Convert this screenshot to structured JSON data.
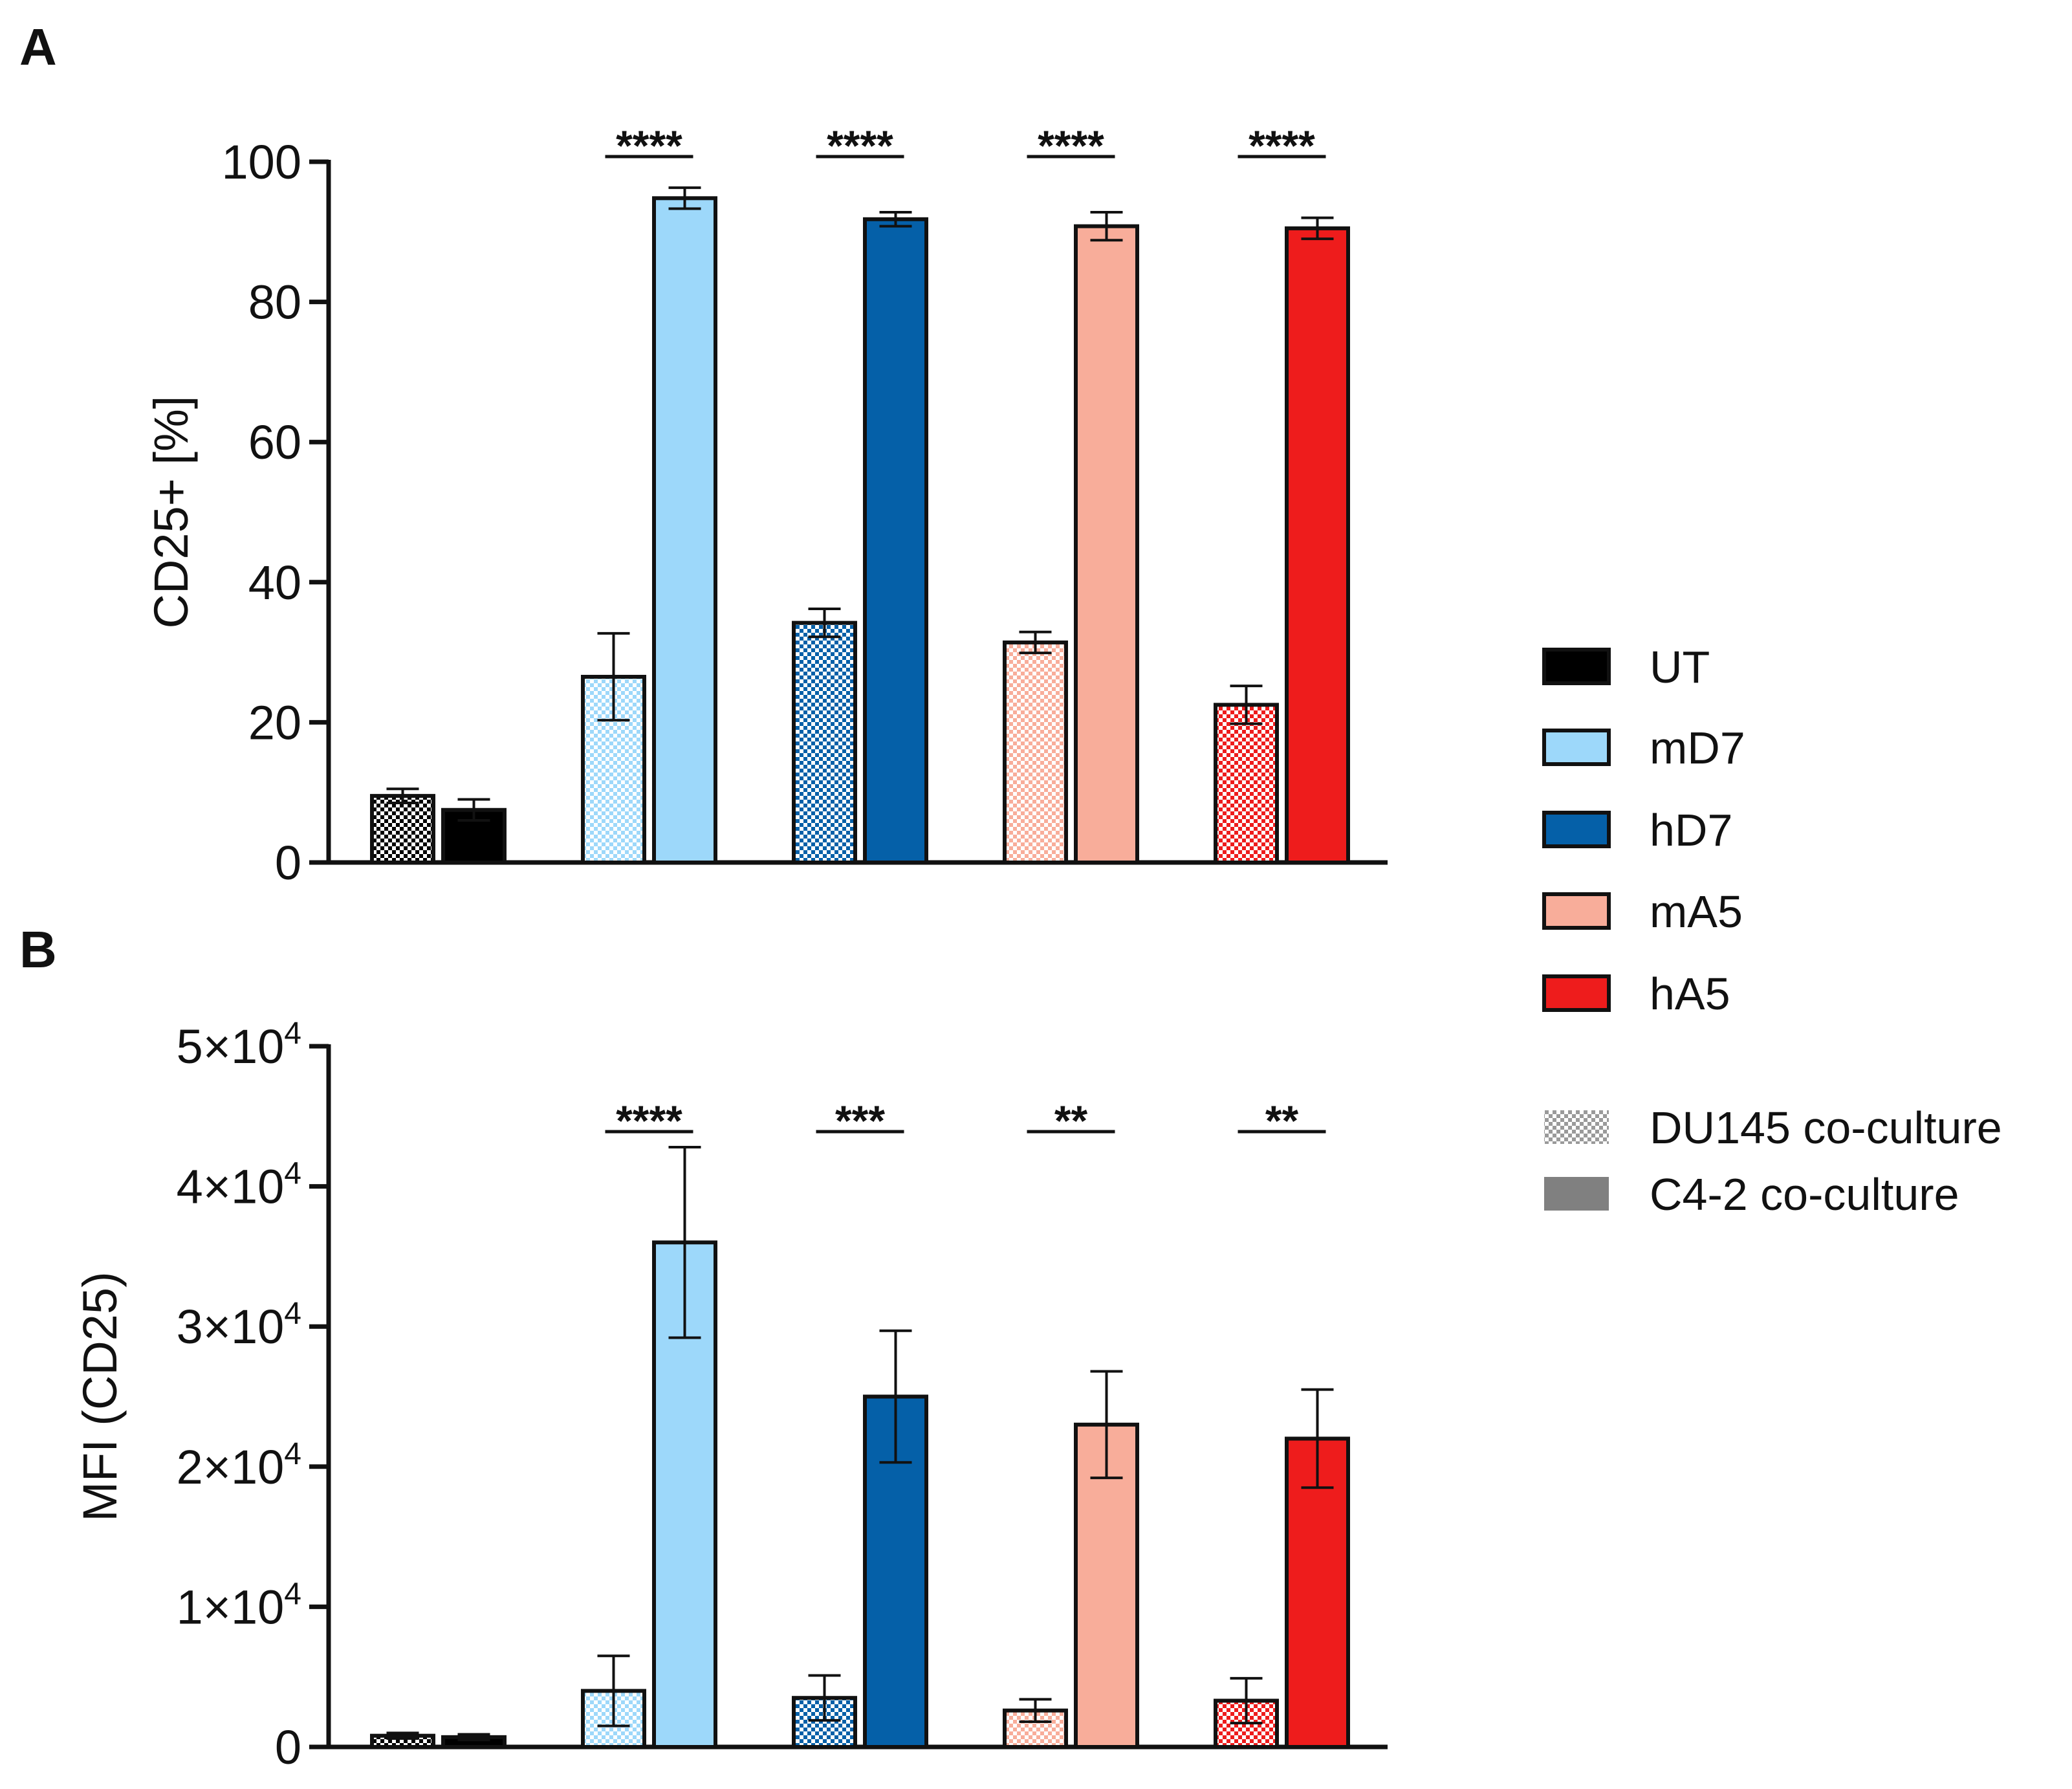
{
  "colors": {
    "UT": "#000000",
    "mD7": "#9dd8fa",
    "hD7": "#0560a8",
    "mA5": "#f8ad9a",
    "hA5": "#ee1c1c",
    "pattern_swatch": "#9a9a9a",
    "solid_swatch": "#808080"
  },
  "legend": {
    "groups": [
      {
        "key": "UT",
        "label": "UT"
      },
      {
        "key": "mD7",
        "label": "mD7"
      },
      {
        "key": "hD7",
        "label": "hD7"
      },
      {
        "key": "mA5",
        "label": "mA5"
      },
      {
        "key": "hA5",
        "label": "hA5"
      }
    ],
    "conditions": [
      {
        "key": "du145",
        "label": "DU145 co-culture",
        "style": "checkered"
      },
      {
        "key": "c42",
        "label": "C4-2 co-culture",
        "style": "solid"
      }
    ]
  },
  "chart_data": [
    {
      "panel": "A",
      "type": "bar",
      "title": "",
      "ylabel": "CD25+ [%]",
      "xlabel": "",
      "ylim": [
        0,
        100
      ],
      "yticks": [
        0,
        20,
        40,
        60,
        80,
        100
      ],
      "ytick_labels": [
        {
          "base": "0"
        },
        {
          "base": "20"
        },
        {
          "base": "40"
        },
        {
          "base": "60"
        },
        {
          "base": "80"
        },
        {
          "base": "100"
        }
      ],
      "categories": [
        "UT",
        "mD7",
        "hD7",
        "mA5",
        "hA5"
      ],
      "series": [
        {
          "name": "DU145 co-culture",
          "style": "checkered",
          "values": [
            9.5,
            26.5,
            34.2,
            31.4,
            22.5
          ],
          "errors": [
            1.0,
            6.2,
            2.0,
            1.5,
            2.7
          ]
        },
        {
          "name": "C4-2 co-culture",
          "style": "solid",
          "values": [
            7.5,
            94.8,
            91.8,
            90.8,
            90.5
          ],
          "errors": [
            1.5,
            1.5,
            1.0,
            2.0,
            1.5
          ]
        }
      ],
      "significance": [
        "",
        "****",
        "****",
        "****",
        "****"
      ]
    },
    {
      "panel": "B",
      "type": "bar",
      "title": "",
      "ylabel": "MFI (CD25)",
      "xlabel": "",
      "ylim": [
        0,
        50000
      ],
      "yticks": [
        0,
        10000,
        20000,
        30000,
        40000,
        50000
      ],
      "ytick_labels": [
        {
          "base": "0"
        },
        {
          "base": "1×10",
          "exp": "4"
        },
        {
          "base": "2×10",
          "exp": "4"
        },
        {
          "base": "3×10",
          "exp": "4"
        },
        {
          "base": "4×10",
          "exp": "4"
        },
        {
          "base": "5×10",
          "exp": "4"
        }
      ],
      "categories": [
        "UT",
        "mD7",
        "hD7",
        "mA5",
        "hA5"
      ],
      "series": [
        {
          "name": "DU145 co-culture",
          "style": "checkered",
          "values": [
            800,
            4000,
            3500,
            2600,
            3300
          ],
          "errors": [
            200,
            2500,
            1600,
            800,
            1600
          ]
        },
        {
          "name": "C4-2 co-culture",
          "style": "solid",
          "values": [
            700,
            36000,
            25000,
            23000,
            22000
          ],
          "errors": [
            200,
            6800,
            4700,
            3800,
            3500
          ]
        }
      ],
      "significance": [
        "",
        "****",
        "***",
        "**",
        "**"
      ]
    }
  ]
}
